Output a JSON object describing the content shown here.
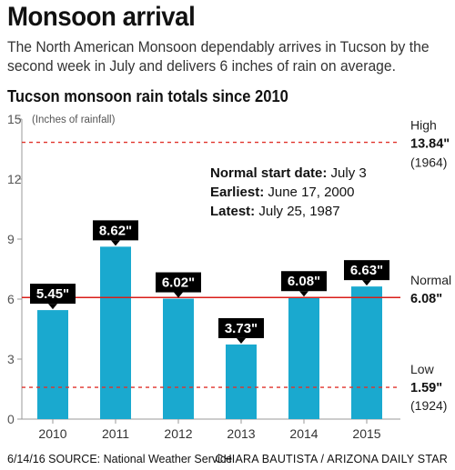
{
  "headline": "Monsoon arrival",
  "dek": "The North American Monsoon dependably arrives in Tucson by the second week in July and delivers 6 inches of rain on average.",
  "subhead": "Tucson monsoon rain totals since 2010",
  "notes": {
    "normal_start_label": "Normal start date:",
    "normal_start_value": " July 3",
    "earliest_label": "Earliest:",
    "earliest_value": " June 17, 2000",
    "latest_label": "Latest:",
    "latest_value": " July 25, 1987"
  },
  "footer": {
    "left": "6/14/16  SOURCE: National Weather Service",
    "right": "CHIARA BAUTISTA / ARIZONA DAILY STAR"
  },
  "colors": {
    "bar": "#1aa9cf",
    "normal_line": "#d91e18",
    "dashed_line": "#e0322a",
    "label_box": "#000000",
    "axis": "#999999"
  },
  "chart_data": {
    "type": "bar",
    "categories": [
      "2010",
      "2011",
      "2012",
      "2013",
      "2014",
      "2015"
    ],
    "values": [
      5.45,
      8.62,
      6.02,
      3.73,
      6.08,
      6.63
    ],
    "data_labels": [
      "5.45\"",
      "8.62\"",
      "6.02\"",
      "3.73\"",
      "6.08\"",
      "6.63\""
    ],
    "ylim": [
      0,
      15
    ],
    "yticks": [
      0,
      3,
      6,
      9,
      12,
      15
    ],
    "ylabel": "(Inches of rainfall)",
    "grid": false,
    "reference_lines": [
      {
        "name": "High",
        "value": 13.84,
        "label": "13.84\"",
        "year": "(1964)",
        "style": "dashed"
      },
      {
        "name": "Normal",
        "value": 6.08,
        "label": "6.08\"",
        "year": "",
        "style": "solid"
      },
      {
        "name": "Low",
        "value": 1.59,
        "label": "1.59\"",
        "year": "(1924)",
        "style": "dashed"
      }
    ]
  }
}
